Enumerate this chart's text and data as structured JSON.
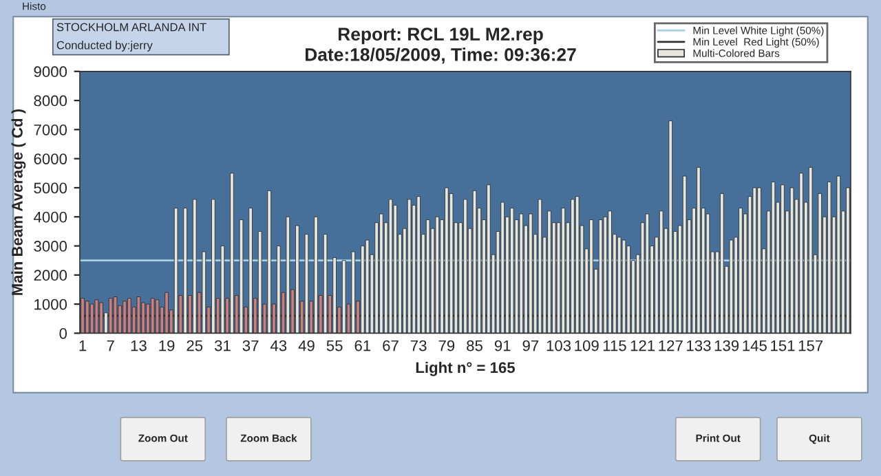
{
  "chart_data": {
    "type": "bar",
    "title": "Report: RCL 19L M2.rep",
    "subtitle": "Date:18/05/2009, Time: 09:36:27",
    "xlabel": "Light n° = 165",
    "ylabel": "Main Beam Average ( Cd )",
    "annotations": [
      "STOCKHOLM ARLANDA INT",
      "Conducted by:jerry",
      "Histo",
      "Zoom Out",
      "Zoom Back",
      "Print Out",
      "Quit"
    ],
    "categories": [
      "1",
      null,
      null,
      null,
      null,
      null,
      "7",
      null,
      null,
      null,
      null,
      null,
      "13",
      null,
      null,
      null,
      null,
      null,
      "19",
      null,
      null,
      null,
      null,
      null,
      "25",
      null,
      null,
      null,
      null,
      null,
      "31",
      null,
      null,
      null,
      null,
      null,
      "37",
      null,
      null,
      null,
      null,
      null,
      "43",
      null,
      null,
      null,
      null,
      null,
      "49",
      null,
      null,
      null,
      null,
      null,
      "55",
      null,
      null,
      null,
      null,
      null,
      "61",
      null,
      null,
      null,
      null,
      null,
      "67",
      null,
      null,
      null,
      null,
      null,
      "73",
      null,
      null,
      null,
      null,
      null,
      "79",
      null,
      null,
      null,
      null,
      null,
      "85",
      null,
      null,
      null,
      null,
      null,
      "91",
      null,
      null,
      null,
      null,
      null,
      "97",
      null,
      null,
      null,
      null,
      null,
      "103",
      null,
      null,
      null,
      null,
      null,
      "109",
      null,
      null,
      null,
      null,
      null,
      "115",
      null,
      null,
      null,
      null,
      null,
      "121",
      null,
      null,
      null,
      null,
      null,
      "127",
      null,
      null,
      null,
      null,
      null,
      "133",
      null,
      null,
      null,
      null,
      null,
      "139",
      null,
      null,
      null,
      null,
      null,
      "145",
      null,
      null,
      null,
      null,
      null,
      "151",
      null,
      null,
      null,
      null,
      null,
      "157",
      null,
      null,
      null,
      null,
      null,
      null,
      null,
      null
    ],
    "series": [
      {
        "name": "Multi-Colored Bars",
        "values": [
          1200,
          1100,
          1000,
          1150,
          1050,
          700,
          1200,
          1250,
          950,
          1100,
          1200,
          900,
          1250,
          1050,
          1000,
          1200,
          1150,
          900,
          1400,
          800,
          4300,
          1300,
          4300,
          1300,
          4600,
          1400,
          2800,
          900,
          4600,
          1200,
          3000,
          1200,
          5500,
          1300,
          3900,
          900,
          4300,
          1200,
          3500,
          1000,
          4900,
          1000,
          3000,
          1400,
          4000,
          1500,
          3700,
          1100,
          3400,
          1100,
          4000,
          1300,
          3400,
          1300,
          2600,
          900,
          2500,
          1000,
          2800,
          1100,
          3000,
          3200,
          2700,
          3800,
          4100,
          3800,
          4600,
          4400,
          3400,
          3600,
          4600,
          4400,
          4700,
          3400,
          3900,
          3600,
          4000,
          3900,
          5000,
          4800,
          3800,
          3800,
          4600,
          3600,
          4900,
          4300,
          3900,
          5100,
          2700,
          3500,
          4500,
          4000,
          4300,
          3900,
          4100,
          3700,
          4100,
          3400,
          4600,
          3300,
          4200,
          3800,
          3800,
          4300,
          3800,
          4600,
          4700,
          3700,
          2900,
          3900,
          2200,
          3900,
          4000,
          4200,
          3400,
          3300,
          3200,
          3000,
          2500,
          2700,
          3800,
          4100,
          3000,
          3300,
          4200,
          3600,
          7300,
          3500,
          3700,
          5400,
          3900,
          4300,
          5700,
          4300,
          4100,
          2800,
          2800,
          4800,
          2300,
          3200,
          3300,
          4300,
          4100,
          4700,
          5000,
          5000,
          2900,
          4200,
          5200,
          4500,
          5100,
          4200,
          5000,
          4600,
          5500,
          4500,
          5700,
          2700,
          4800,
          4000,
          5200,
          4000,
          5400,
          4200,
          5000
        ],
        "colors": [
          "#c98080",
          "#c98080",
          "#c98080",
          "#c98080",
          "#c98080",
          "#e6e6de",
          "#c98080",
          "#c98080",
          "#c98080",
          "#c98080",
          "#c98080",
          "#c98080",
          "#c98080",
          "#c98080",
          "#c98080",
          "#c98080",
          "#c98080",
          "#c98080",
          "#c98080",
          "#c98080",
          "#e6e6de",
          "#c98080",
          "#e6e6de",
          "#c98080",
          "#e6e6de",
          "#c98080",
          "#e6e6de",
          "#c98080",
          "#e6e6de",
          "#c98080",
          "#e6e6de",
          "#c98080",
          "#e6e6de",
          "#c98080",
          "#e6e6de",
          "#c98080",
          "#e6e6de",
          "#c98080",
          "#e6e6de",
          "#c98080",
          "#e6e6de",
          "#c98080",
          "#e6e6de",
          "#c98080",
          "#e6e6de",
          "#c98080",
          "#e6e6de",
          "#c98080",
          "#e6e6de",
          "#c98080",
          "#e6e6de",
          "#c98080",
          "#e6e6de",
          "#c98080",
          "#e6e6de",
          "#c98080",
          "#e6e6de",
          "#c98080",
          "#e6e6de",
          "#c98080",
          "#e6e6de",
          "#e6e6de",
          "#e6e6de",
          "#e6e6de",
          "#e6e6de",
          "#e6e6de",
          "#e6e6de",
          "#e6e6de",
          "#e6e6de",
          "#e6e6de",
          "#e6e6de",
          "#e6e6de",
          "#e6e6de",
          "#e6e6de",
          "#e6e6de",
          "#e6e6de",
          "#e6e6de",
          "#e6e6de",
          "#e6e6de",
          "#e6e6de",
          "#e6e6de",
          "#e6e6de",
          "#e6e6de",
          "#e6e6de",
          "#e6e6de",
          "#e6e6de",
          "#e6e6de",
          "#e6e6de",
          "#e6e6de",
          "#e6e6de",
          "#e6e6de",
          "#e6e6de",
          "#e6e6de",
          "#e6e6de",
          "#e6e6de",
          "#e6e6de",
          "#e6e6de",
          "#e6e6de",
          "#e6e6de",
          "#e6e6de",
          "#e6e6de",
          "#e6e6de",
          "#e6e6de",
          "#e6e6de",
          "#e6e6de",
          "#e6e6de",
          "#e6e6de",
          "#e6e6de",
          "#e6e6de",
          "#e6e6de",
          "#e6e6de",
          "#e6e6de",
          "#e6e6de",
          "#e6e6de",
          "#e6e6de",
          "#e6e6de",
          "#e6e6de",
          "#e6e6de",
          "#e6e6de",
          "#e6e6de",
          "#e6e6de",
          "#e6e6de",
          "#e6e6de",
          "#e6e6de",
          "#e6e6de",
          "#e6e6de",
          "#e6e6de",
          "#e6e6de",
          "#e6e6de",
          "#e6e6de",
          "#e6e6de",
          "#e6e6de",
          "#e6e6de",
          "#e6e6de",
          "#e6e6de",
          "#e6e6de",
          "#e6e6de",
          "#e6e6de",
          "#e6e6de",
          "#e6e6de",
          "#e6e6de",
          "#e6e6de",
          "#e6e6de",
          "#e6e6de",
          "#e6e6de",
          "#e6e6de",
          "#e6e6de",
          "#e6e6de",
          "#e6e6de",
          "#e6e6de",
          "#e6e6de",
          "#e6e6de",
          "#e6e6de",
          "#e6e6de",
          "#e6e6de",
          "#e6e6de",
          "#e6e6de",
          "#e6e6de",
          "#e6e6de",
          "#e6e6de",
          "#e6e6de",
          "#e6e6de",
          "#e6e6de",
          "#e6e6de",
          "#e6e6de"
        ]
      }
    ],
    "ylim": [
      0,
      9000
    ],
    "yticks": [
      0,
      1000,
      2000,
      3000,
      4000,
      5000,
      6000,
      7000,
      8000,
      9000
    ],
    "ref_lines": [
      {
        "axis": "y",
        "value": 2500,
        "label": "Min Level White Light (50%)",
        "color": "#a8d0e0"
      },
      {
        "axis": "y",
        "value": 600,
        "label": "Min Level  Red Light (50%)",
        "color": "#303030"
      }
    ],
    "legend": "top right",
    "grid": false
  }
}
